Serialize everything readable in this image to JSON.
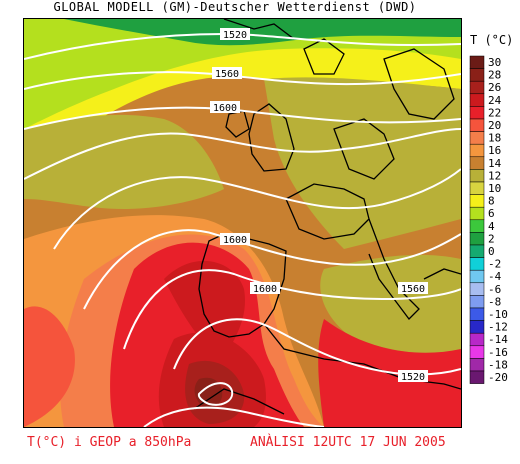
{
  "header": {
    "title": "GLOBAL MODELL (GM)-Deutscher Wetterdienst (DWD)"
  },
  "legend": {
    "title": "T (°C)",
    "levels": [
      {
        "label": "30",
        "color": "#6b1b16"
      },
      {
        "label": "28",
        "color": "#8a2018"
      },
      {
        "label": "26",
        "color": "#a8201c"
      },
      {
        "label": "24",
        "color": "#cc1a1e"
      },
      {
        "label": "22",
        "color": "#e8202a"
      },
      {
        "label": "20",
        "color": "#f5543c"
      },
      {
        "label": "18",
        "color": "#f47e4a"
      },
      {
        "label": "16",
        "color": "#f4963e"
      },
      {
        "label": "14",
        "color": "#c88030"
      },
      {
        "label": "12",
        "color": "#b8b038"
      },
      {
        "label": "10",
        "color": "#d8d440"
      },
      {
        "label": "8",
        "color": "#f5f01a"
      },
      {
        "label": "6",
        "color": "#b4e01e"
      },
      {
        "label": "4",
        "color": "#3cc83c"
      },
      {
        "label": "2",
        "color": "#1fa040"
      },
      {
        "label": "0",
        "color": "#15aa70"
      },
      {
        "label": "-2",
        "color": "#10d0d8"
      },
      {
        "label": "-4",
        "color": "#70c8f0"
      },
      {
        "label": "-6",
        "color": "#a8bdf0"
      },
      {
        "label": "-8",
        "color": "#7e9cf0"
      },
      {
        "label": "-10",
        "color": "#3c5ae8"
      },
      {
        "label": "-12",
        "color": "#2828c8"
      },
      {
        "label": "-14",
        "color": "#b828c8"
      },
      {
        "label": "-16",
        "color": "#e838e8"
      },
      {
        "label": "-18",
        "color": "#a028a8"
      },
      {
        "label": "-20",
        "color": "#6a1870"
      }
    ]
  },
  "contour_labels": [
    {
      "text": "1520",
      "id": "north"
    },
    {
      "text": "1560",
      "id": "north-2"
    },
    {
      "text": "1600",
      "id": "north-3"
    },
    {
      "text": "1600",
      "id": "iberia-north"
    },
    {
      "text": "1600",
      "id": "iberia-south"
    },
    {
      "text": "1560",
      "id": "mediterranean"
    },
    {
      "text": "1520",
      "id": "southeast"
    }
  ],
  "footer": {
    "left": "T(°C) i GEOP a 850hPa",
    "right": "ANÀLISI 12UTC 17 JUN 2005"
  }
}
